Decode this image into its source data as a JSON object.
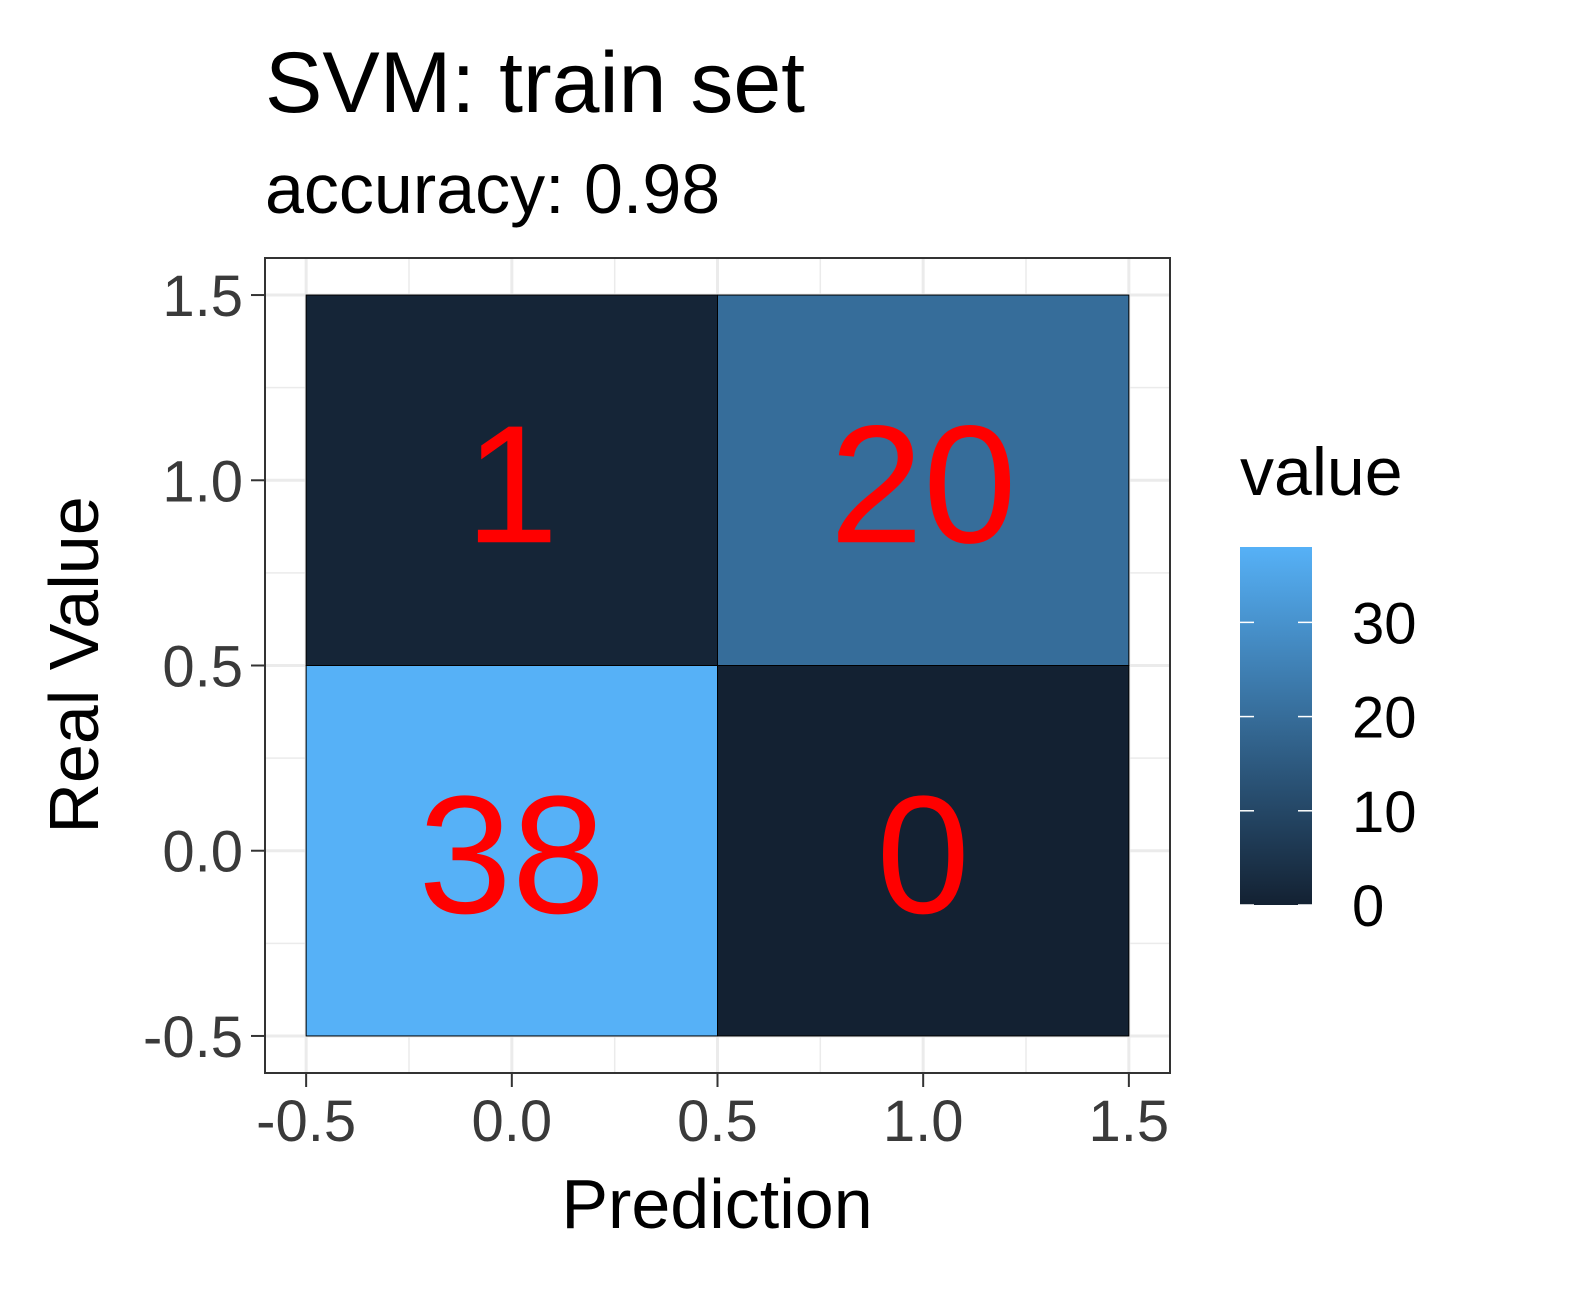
{
  "chart_data": {
    "type": "heatmap",
    "title": "SVM: train set",
    "subtitle": "accuracy: 0.98",
    "xlabel": "Prediction",
    "ylabel": "Real Value",
    "xlim": [
      -0.6,
      1.6
    ],
    "ylim": [
      -0.6,
      1.6
    ],
    "x_ticks": [
      -0.5,
      0.0,
      0.5,
      1.0,
      1.5
    ],
    "y_ticks": [
      -0.5,
      0.0,
      0.5,
      1.0,
      1.5
    ],
    "x_tick_labels": [
      "-0.5",
      "0.0",
      "0.5",
      "1.0",
      "1.5"
    ],
    "y_tick_labels": [
      "-0.5",
      "0.0",
      "0.5",
      "1.0",
      "1.5"
    ],
    "grid": true,
    "cells": [
      {
        "x": 0,
        "y": 1,
        "value": 1,
        "label": "1"
      },
      {
        "x": 1,
        "y": 1,
        "value": 20,
        "label": "20"
      },
      {
        "x": 0,
        "y": 0,
        "value": 38,
        "label": "38"
      },
      {
        "x": 1,
        "y": 0,
        "value": 0,
        "label": "0"
      }
    ],
    "cell_label_color": "#ff0000",
    "colorscale": {
      "low_color": "#132132",
      "high_color": "#56b1f7",
      "min": 0,
      "max": 38
    },
    "legend": {
      "title": "value",
      "position": "right",
      "ticks": [
        0,
        10,
        20,
        30
      ],
      "tick_labels": [
        "0",
        "10",
        "20",
        "30"
      ]
    }
  }
}
